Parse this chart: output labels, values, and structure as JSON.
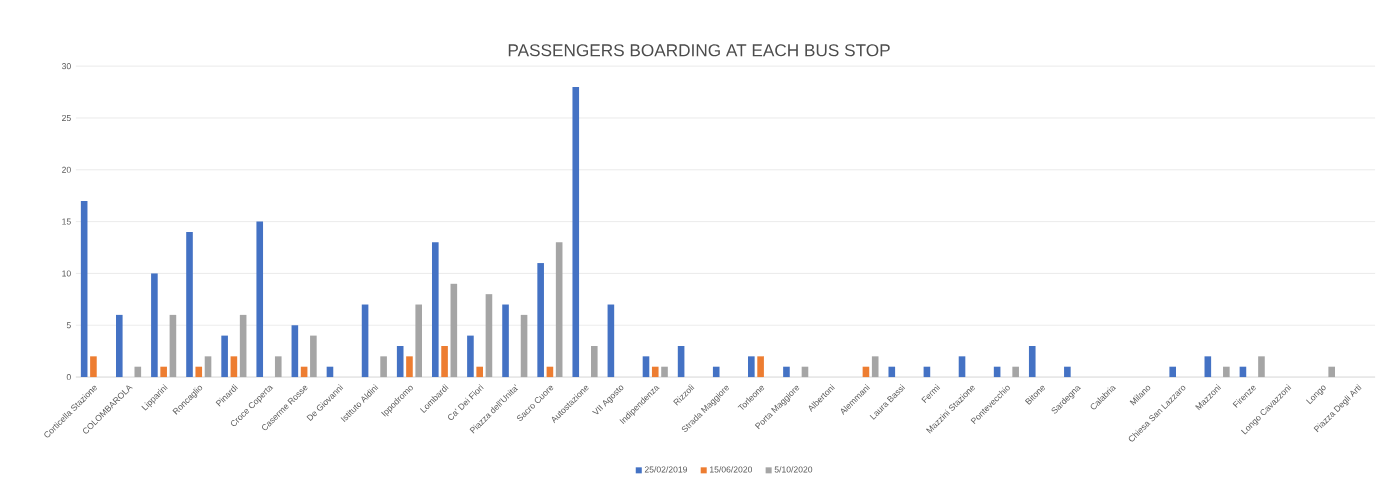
{
  "chart_data": {
    "type": "bar",
    "title": "PASSENGERS BOARDING AT EACH BUS STOP",
    "categories": [
      "Corticella Stazione",
      "COLOMBAROLA",
      "Lipparini",
      "Roncaglio",
      "Pinardi",
      "Croce Coperta",
      "Caserme Rosse",
      "De Giovanni",
      "Istituto Aldini",
      "Ippodromo",
      "Lombardi",
      "Ca' Dei Fiori",
      "Piazza dell'Unita'",
      "Sacro Cuore",
      "Autostazione",
      "VII Agosto",
      "Indipendenza",
      "Rizzoli",
      "Strada Maggiore",
      "Torleone",
      "Porta Maggiore",
      "Albertoni",
      "Alemmani",
      "Laura Bassi",
      "Fermi",
      "Mazzini Stazione",
      "Pontevecchio",
      "Bitone",
      "Sardegna",
      "Calabria",
      "Milano",
      "Chiesa San Lazzaro",
      "Mazzoni",
      "Firenze",
      "Longo Cavazzoni",
      "Longo",
      "Piazza Degli Arti"
    ],
    "series": [
      {
        "name": "25/02/2019",
        "color": "#4472c4",
        "values": [
          17,
          6,
          10,
          14,
          4,
          15,
          5,
          1,
          7,
          3,
          13,
          4,
          7,
          11,
          28,
          7,
          2,
          3,
          1,
          2,
          1,
          null,
          null,
          1,
          1,
          2,
          1,
          3,
          1,
          null,
          null,
          1,
          2,
          1,
          null,
          null,
          null
        ]
      },
      {
        "name": "15/06/2020",
        "color": "#ed7d31",
        "values": [
          2,
          null,
          1,
          1,
          2,
          null,
          1,
          null,
          null,
          2,
          3,
          1,
          null,
          1,
          null,
          null,
          1,
          null,
          null,
          2,
          null,
          null,
          1,
          null,
          null,
          null,
          null,
          null,
          null,
          null,
          null,
          null,
          null,
          null,
          null,
          null,
          null
        ]
      },
      {
        "name": "5/10/2020",
        "color": "#a5a5a5",
        "values": [
          null,
          1,
          6,
          2,
          6,
          2,
          4,
          null,
          2,
          7,
          9,
          8,
          6,
          13,
          3,
          null,
          1,
          null,
          null,
          null,
          1,
          null,
          2,
          null,
          null,
          null,
          1,
          null,
          null,
          null,
          null,
          null,
          1,
          2,
          null,
          1,
          null
        ]
      }
    ],
    "ylim": [
      0,
      30
    ],
    "yticks": [
      0,
      5,
      10,
      15,
      20,
      25,
      30
    ],
    "grid": "y",
    "legend": "bottom"
  }
}
